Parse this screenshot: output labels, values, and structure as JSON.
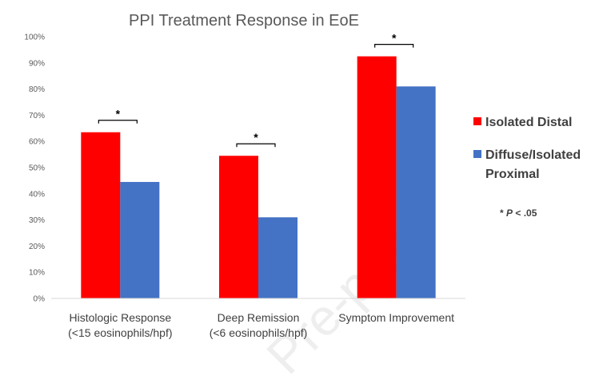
{
  "chart_data": {
    "type": "bar",
    "title": "PPI Treatment Response in EoE",
    "xlabel": "",
    "ylabel": "",
    "ylim": [
      0,
      100
    ],
    "yticks": [
      "0%",
      "10%",
      "20%",
      "30%",
      "40%",
      "50%",
      "60%",
      "70%",
      "80%",
      "90%",
      "100%"
    ],
    "categories": [
      [
        "Histologic Response",
        "(<15 eosinophils/hpf)"
      ],
      [
        "Deep Remission",
        "(<6 eosinophils/hpf)"
      ],
      [
        "Symptom Improvement"
      ]
    ],
    "series": [
      {
        "name": "Isolated Distal",
        "color": "#ff0000",
        "values": [
          63.5,
          54.5,
          92.5
        ]
      },
      {
        "name": "Diffuse/Isolated Proximal",
        "color": "#4472c4",
        "values": [
          44.5,
          31,
          81
        ]
      }
    ],
    "legend": {
      "placement": "right",
      "entries": [
        [
          "Isolated Distal"
        ],
        [
          "Diffuse/Isolated",
          "Proximal"
        ]
      ]
    },
    "significance_marker": "*",
    "footnote": {
      "prefix": "* ",
      "italic": "P",
      "suffix": " < .05"
    },
    "grid": false
  },
  "watermark": "Pre-proof"
}
